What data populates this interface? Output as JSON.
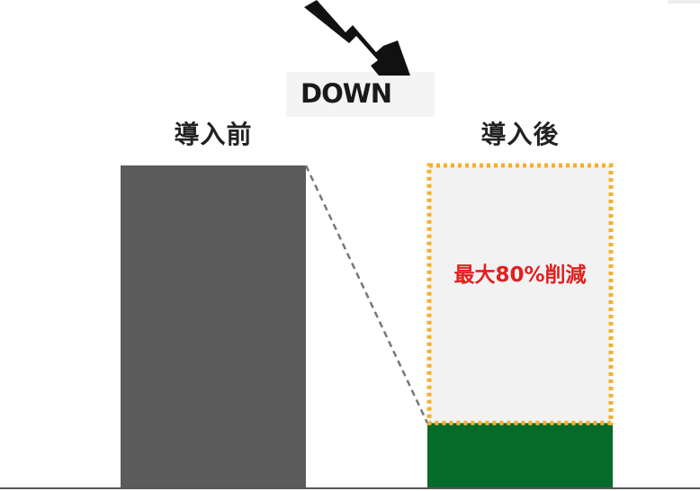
{
  "chart_data": {
    "type": "bar",
    "categories": [
      "導入前",
      "導入後"
    ],
    "values": [
      100,
      20
    ],
    "reduced_portion": 80,
    "ylim": [
      0,
      100
    ],
    "title": "",
    "xlabel": "",
    "ylabel": "",
    "grid": false,
    "annotation": "最大80%削減",
    "badge": "DOWN",
    "colors": {
      "before_bar": "#5b5b5b",
      "after_bar": "#056b2a",
      "reduced_fill": "#f2f2f2",
      "reduced_border": "#f6b02c",
      "annotation": "#e02020",
      "connector": "#777777",
      "baseline": "#555555",
      "arrow": "#111111"
    }
  }
}
